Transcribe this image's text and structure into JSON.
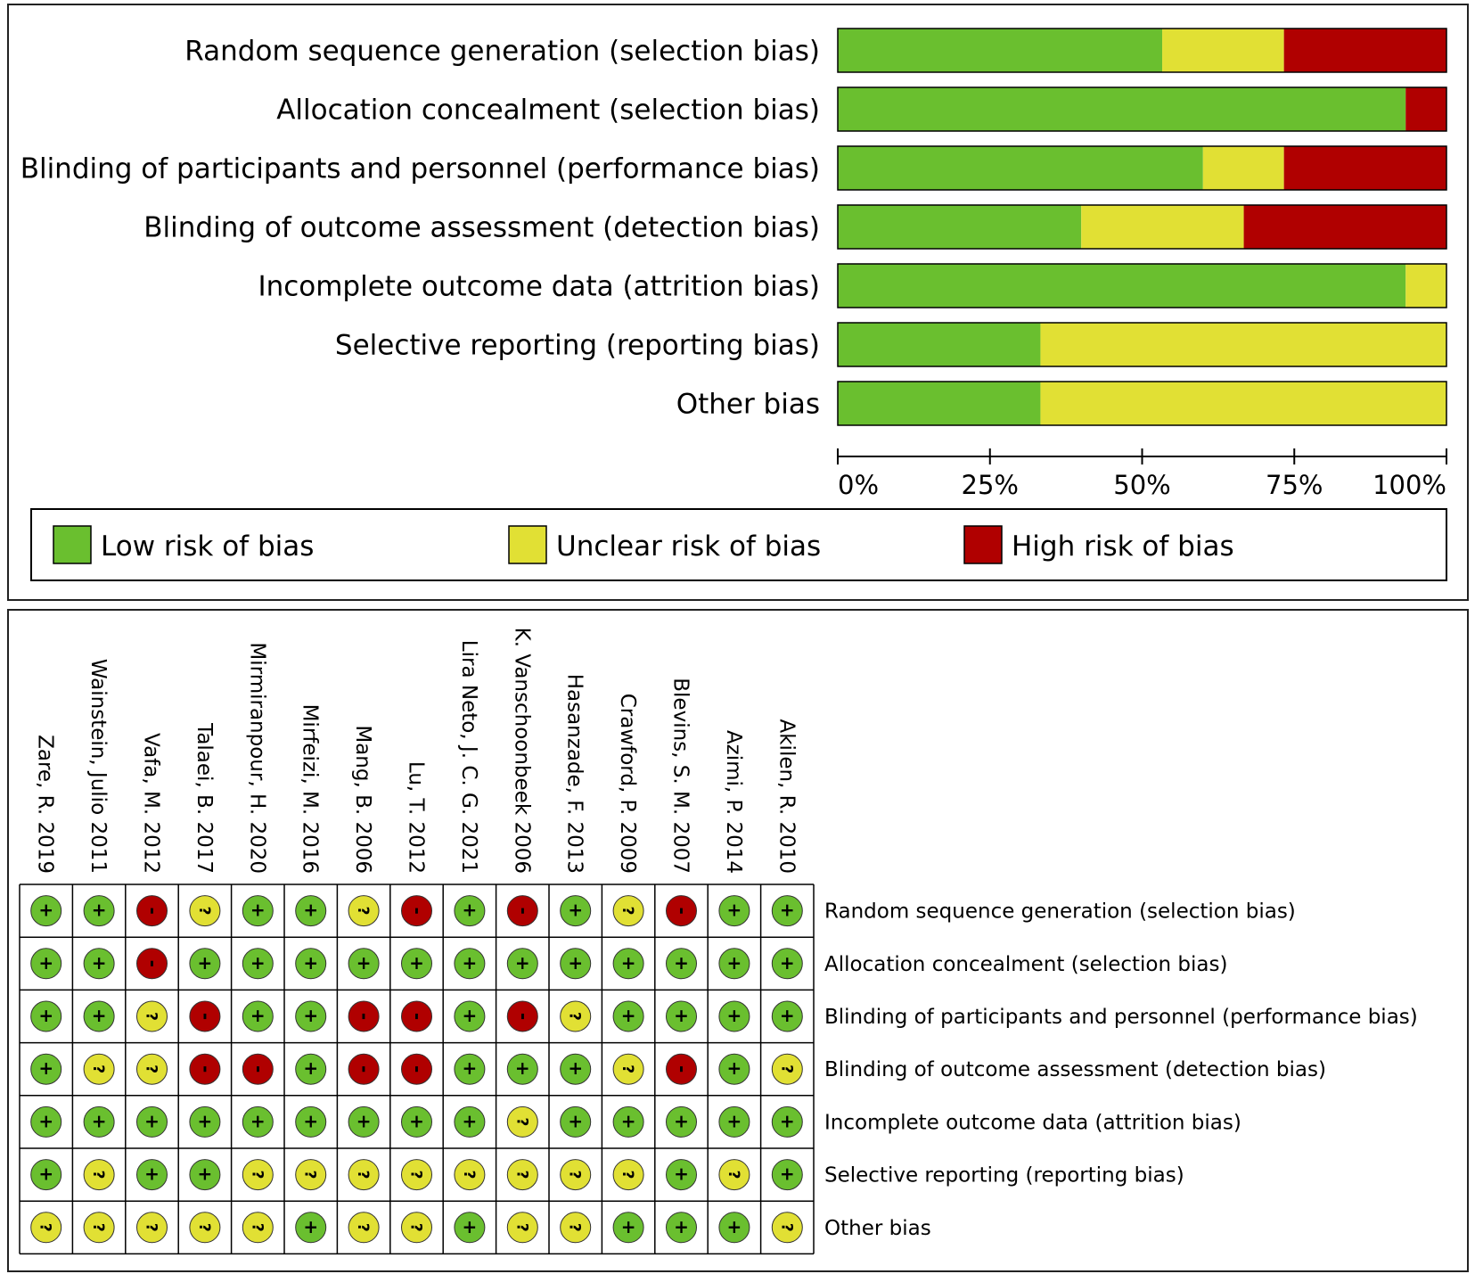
{
  "chart_data": [
    {
      "type": "bar",
      "subtype": "stacked-horizontal-percent",
      "categories": [
        "Random sequence generation (selection bias)",
        "Allocation concealment (selection bias)",
        "Blinding of participants and personnel (performance bias)",
        "Blinding of outcome assessment (detection bias)",
        "Incomplete outcome data (attrition bias)",
        "Selective reporting (reporting bias)",
        "Other bias"
      ],
      "series": [
        {
          "name": "Low risk of bias",
          "color": "#6abf2f",
          "values": [
            53.3,
            93.3,
            60.0,
            40.0,
            93.3,
            33.3,
            33.3
          ]
        },
        {
          "name": "Unclear risk of bias",
          "color": "#e1e034",
          "values": [
            20.0,
            0,
            13.3,
            26.7,
            6.7,
            66.7,
            66.7
          ]
        },
        {
          "name": "High risk of bias",
          "color": "#b00000",
          "values": [
            26.7,
            6.7,
            26.7,
            33.3,
            0,
            0,
            0
          ]
        }
      ],
      "xticks": [
        "0%",
        "25%",
        "50%",
        "75%",
        "100%"
      ],
      "xlim": [
        0,
        100
      ],
      "legend_position": "bottom"
    },
    {
      "type": "table",
      "subtype": "risk-of-bias-traffic-light",
      "studies": [
        "Zare, R. 2019",
        "Wainstein, Julio 2011",
        "Vafa, M. 2012",
        "Talaei, B. 2017",
        "Mirmiranpour, H. 2020",
        "Mirfeizi, M. 2016",
        "Mang, B. 2006",
        "Lu, T. 2012",
        "Lira Neto, J. C. G. 2021",
        "K. Vanschoonbeek 2006",
        "Hasanzade, F. 2013",
        "Crawford, P. 2009",
        "Blevins, S. M. 2007",
        "Azimi, P. 2014",
        "Akilen, R. 2010"
      ],
      "domains": [
        "Random sequence generation (selection bias)",
        "Allocation concealment (selection bias)",
        "Blinding of participants and personnel (performance bias)",
        "Blinding of outcome assessment (detection bias)",
        "Incomplete outcome data (attrition bias)",
        "Selective reporting (reporting bias)",
        "Other bias"
      ],
      "judgements": [
        [
          "+",
          "+",
          "-",
          "?",
          "+",
          "+",
          "?",
          "-",
          "+",
          "-",
          "+",
          "?",
          "-",
          "+",
          "+"
        ],
        [
          "+",
          "+",
          "-",
          "+",
          "+",
          "+",
          "+",
          "+",
          "+",
          "+",
          "+",
          "+",
          "+",
          "+",
          "+"
        ],
        [
          "+",
          "+",
          "?",
          "-",
          "+",
          "+",
          "-",
          "-",
          "+",
          "-",
          "?",
          "+",
          "+",
          "+",
          "+"
        ],
        [
          "+",
          "?",
          "?",
          "-",
          "-",
          "+",
          "-",
          "-",
          "+",
          "+",
          "+",
          "?",
          "-",
          "+",
          "?"
        ],
        [
          "+",
          "+",
          "+",
          "+",
          "+",
          "+",
          "+",
          "+",
          "+",
          "?",
          "+",
          "+",
          "+",
          "+",
          "+"
        ],
        [
          "+",
          "?",
          "+",
          "+",
          "?",
          "?",
          "?",
          "?",
          "?",
          "?",
          "?",
          "?",
          "+",
          "?",
          "+"
        ],
        [
          "?",
          "?",
          "?",
          "?",
          "?",
          "+",
          "?",
          "?",
          "+",
          "?",
          "?",
          "+",
          "+",
          "+",
          "?"
        ]
      ],
      "symbol_colors": {
        "+": "#6abf2f",
        "?": "#e1e034",
        "-": "#b00000"
      }
    }
  ]
}
